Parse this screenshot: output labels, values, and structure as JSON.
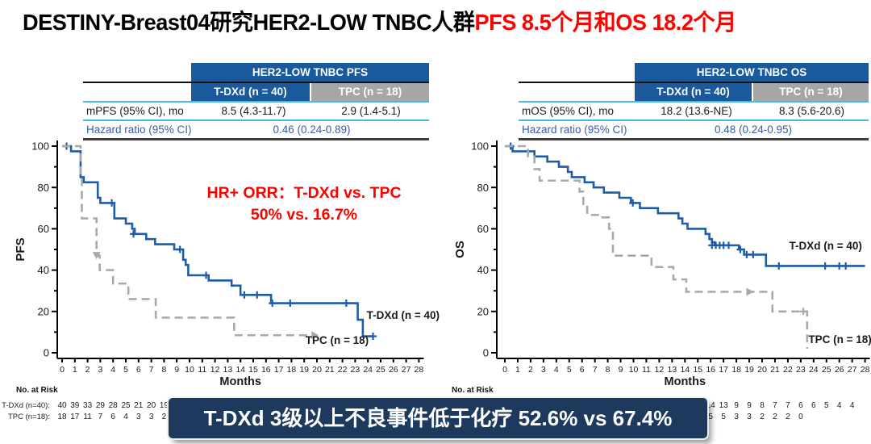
{
  "title": {
    "black": "DESTINY-Breast04研究HER2-LOW TNBC人群",
    "red": "PFS 8.5个月和OS 18.2个月"
  },
  "colors": {
    "table_header_blue": "#1a5a9c",
    "tpc_gray": "#a6a6a6",
    "rule_light_blue": "#45b8e6",
    "curve_blue": "#1f5ca8",
    "curve_gray": "#a9a9a9",
    "accent_red": "#fe0000",
    "banner_navy": "#1d3a5e"
  },
  "panels": [
    {
      "header": "HER2-LOW TNBC PFS",
      "col1": "T-DXd (n = 40)",
      "col2": "TPC (n = 18)",
      "metric_label": "mPFS (95% CI), mo",
      "metric_v1": "8.5 (4.3-11.7)",
      "metric_v2": "2.9 (1.4-5.1)",
      "hr_label": "Hazard ratio (95% CI)",
      "hr_value": "0.46 (0.24-0.89)",
      "risk_title": "No. at Risk",
      "risk_row1_label": "T-DXd (n=40):",
      "risk_row2_label": "TPC (n=18):"
    },
    {
      "header": "HER2-LOW TNBC OS",
      "col1": "T-DXd (n = 40)",
      "col2": "TPC (n = 18)",
      "metric_label": "mOS (95% CI), mo",
      "metric_v1": "18.2 (13.6-NE)",
      "metric_v2": "8.3 (5.6-20.6)",
      "hr_label": "Hazard ratio (95% CI)",
      "hr_value": "0.48 (0.24-0.95)",
      "risk_title": "No. at Risk"
    }
  ],
  "annotation": {
    "line1": "HR+ ORR：T-DXd vs. TPC",
    "line2": "50% vs. 16.7%"
  },
  "banner": {
    "text": "T-DXd 3级以上不良事件低于化疗 52.6% vs 67.4%"
  },
  "chart_data": [
    {
      "type": "line",
      "subtype": "kaplan_meier_step",
      "name": "pfs",
      "ylabel": "PFS",
      "xlabel": "Months",
      "xlim": [
        0,
        28
      ],
      "ylim": [
        0,
        100
      ],
      "xticks_step": 1,
      "yticks": [
        0,
        20,
        40,
        60,
        80,
        100
      ],
      "series": [
        {
          "name": "T-DXd (n = 40)",
          "data_name": "tdxd-pfs",
          "color": "#1f5ca8",
          "dash": false,
          "label_at": [
            23.9,
            16.5
          ],
          "points": [
            [
              0,
              100
            ],
            [
              0.7,
              97.5
            ],
            [
              1.45,
              85
            ],
            [
              1.7,
              82.5
            ],
            [
              2.8,
              75
            ],
            [
              3.0,
              72.5
            ],
            [
              4.1,
              65
            ],
            [
              5.0,
              62.5
            ],
            [
              5.5,
              60
            ],
            [
              5.7,
              57.5
            ],
            [
              6.6,
              55
            ],
            [
              7.3,
              52.5
            ],
            [
              8.8,
              50
            ],
            [
              9.5,
              45
            ],
            [
              9.7,
              42.5
            ],
            [
              9.9,
              37.5
            ],
            [
              11.5,
              35
            ],
            [
              13.3,
              32.5
            ],
            [
              14.0,
              28
            ],
            [
              16.4,
              24
            ],
            [
              23.2,
              16
            ],
            [
              23.6,
              8
            ],
            [
              24.4,
              8
            ]
          ],
          "censors": [
            [
              0.35,
              100
            ],
            [
              3.9,
              72.5
            ],
            [
              5.6,
              57.5
            ],
            [
              9.25,
              50
            ],
            [
              11.3,
              37.5
            ],
            [
              14.3,
              28
            ],
            [
              15.3,
              28
            ],
            [
              16.5,
              24
            ],
            [
              17.9,
              24
            ],
            [
              22.3,
              24
            ],
            [
              24.4,
              8
            ]
          ],
          "markers": []
        },
        {
          "name": "TPC (n = 18)",
          "data_name": "tpc-pfs",
          "color": "#a9a9a9",
          "dash": true,
          "label_at": [
            19.1,
            4.2
          ],
          "points": [
            [
              0,
              100
            ],
            [
              1.45,
              85
            ],
            [
              1.55,
              65
            ],
            [
              2.7,
              47
            ],
            [
              2.95,
              40
            ],
            [
              4.0,
              33.5
            ],
            [
              5.2,
              26
            ],
            [
              7.35,
              17
            ],
            [
              13.5,
              8.5
            ],
            [
              19.6,
              8.5
            ]
          ],
          "censors": [],
          "markers": [
            {
              "type": "arrow-down",
              "x": 2.7,
              "y": 48
            },
            {
              "type": "arrow-right",
              "x": 19.7,
              "y": 8.5
            }
          ]
        }
      ],
      "risk_rows": [
        {
          "start_month": 0,
          "values": [
            40,
            39,
            33,
            29,
            28,
            25,
            21,
            20,
            19
          ]
        },
        {
          "start_month": 0,
          "values": [
            18,
            17,
            11,
            7,
            6,
            4,
            3,
            3,
            2
          ]
        }
      ]
    },
    {
      "type": "line",
      "subtype": "kaplan_meier_step",
      "name": "os",
      "ylabel": "OS",
      "xlabel": "Months",
      "xlim": [
        0,
        28
      ],
      "ylim": [
        0,
        100
      ],
      "xticks_step": 1,
      "yticks": [
        0,
        20,
        40,
        60,
        80,
        100
      ],
      "series": [
        {
          "name": "T-DXd (n = 40)",
          "data_name": "tdxd-os",
          "color": "#1f5ca8",
          "dash": false,
          "label_at": [
            22.1,
            50
          ],
          "points": [
            [
              0,
              100
            ],
            [
              0.6,
              97.5
            ],
            [
              2.3,
              95
            ],
            [
              3.3,
              92.5
            ],
            [
              4.2,
              90
            ],
            [
              4.9,
              87.5
            ],
            [
              5.2,
              85
            ],
            [
              6.2,
              82.5
            ],
            [
              6.9,
              80
            ],
            [
              7.7,
              77.5
            ],
            [
              8.9,
              75
            ],
            [
              9.8,
              72.5
            ],
            [
              10.5,
              70
            ],
            [
              11.9,
              67.5
            ],
            [
              13.5,
              65
            ],
            [
              13.8,
              62.5
            ],
            [
              14.2,
              60
            ],
            [
              15.6,
              57.5
            ],
            [
              15.9,
              55
            ],
            [
              16.1,
              53.5
            ],
            [
              16.3,
              52
            ],
            [
              18.2,
              50
            ],
            [
              18.6,
              47.5
            ],
            [
              20.3,
              42
            ],
            [
              28,
              42
            ]
          ],
          "censors": [
            [
              0.45,
              100
            ],
            [
              9.95,
              72.5
            ],
            [
              16.1,
              52
            ],
            [
              16.4,
              52
            ],
            [
              16.7,
              52
            ],
            [
              17.0,
              52
            ],
            [
              17.4,
              52
            ],
            [
              18.3,
              50
            ],
            [
              18.8,
              47.5
            ],
            [
              19.3,
              47.5
            ],
            [
              21.3,
              42
            ],
            [
              24.9,
              42
            ],
            [
              26.0,
              42
            ],
            [
              26.5,
              42
            ]
          ],
          "markers": []
        },
        {
          "name": "TPC (n = 18)",
          "data_name": "tpc-os",
          "color": "#a9a9a9",
          "dash": true,
          "label_at": [
            23.6,
            4.6
          ],
          "points": [
            [
              0,
              100
            ],
            [
              1.8,
              95
            ],
            [
              2.3,
              88.9
            ],
            [
              2.7,
              83.3
            ],
            [
              5.8,
              78
            ],
            [
              6.1,
              72
            ],
            [
              6.4,
              66.7
            ],
            [
              7.5,
              65.5
            ],
            [
              8.1,
              60
            ],
            [
              8.4,
              47
            ],
            [
              11.4,
              41.5
            ],
            [
              13.1,
              35.5
            ],
            [
              14.1,
              29.5
            ],
            [
              20.8,
              20
            ],
            [
              23.5,
              2
            ]
          ],
          "censors": [
            [
              23.2,
              20
            ]
          ],
          "markers": [
            {
              "type": "arrow-right",
              "x": 18.9,
              "y": 29.5
            }
          ]
        }
      ],
      "risk_rows": [
        {
          "start_month": 16,
          "values": [
            14,
            13,
            9,
            9,
            8,
            7,
            7,
            6,
            6,
            5,
            4,
            4
          ]
        },
        {
          "start_month": 16,
          "values": [
            5,
            5,
            3,
            3,
            2,
            2,
            2,
            0
          ]
        }
      ]
    }
  ]
}
